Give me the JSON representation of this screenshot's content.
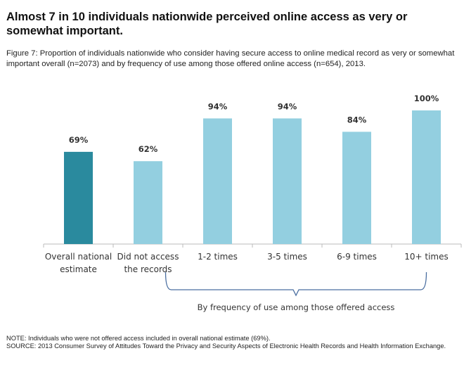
{
  "title": "Almost 7 in 10 individuals nationwide perceived online access as very or somewhat important.",
  "subtitle": "Figure 7: Proportion of individuals nationwide who consider having secure access to online medical record as very or somewhat important overall (n=2073) and by frequency of use among those offered online access (n=654), 2013.",
  "chart_data": {
    "type": "bar",
    "categories": [
      [
        "Overall national",
        "estimate"
      ],
      [
        "Did not access",
        "the records"
      ],
      [
        "1-2 times"
      ],
      [
        "3-5 times"
      ],
      [
        "6-9 times"
      ],
      [
        "10+ times"
      ]
    ],
    "values": [
      69,
      62,
      94,
      94,
      84,
      100
    ],
    "data_labels": [
      "69%",
      "62%",
      "94%",
      "94%",
      "84%",
      "100%"
    ],
    "colors": [
      "#2a8a9e",
      "#93cfe0",
      "#93cfe0",
      "#93cfe0",
      "#93cfe0",
      "#93cfe0"
    ],
    "ylim": [
      0,
      100
    ],
    "grid": false,
    "group_label": "By frequency of use among those offered access"
  },
  "note": "NOTE: Individuals who were not offered access included in overall national estimate (69%).",
  "source": "SOURCE: 2013 Consumer Survey of Attitudes Toward the Privacy and Security Aspects of Electronic Health Records and Health Information Exchange."
}
